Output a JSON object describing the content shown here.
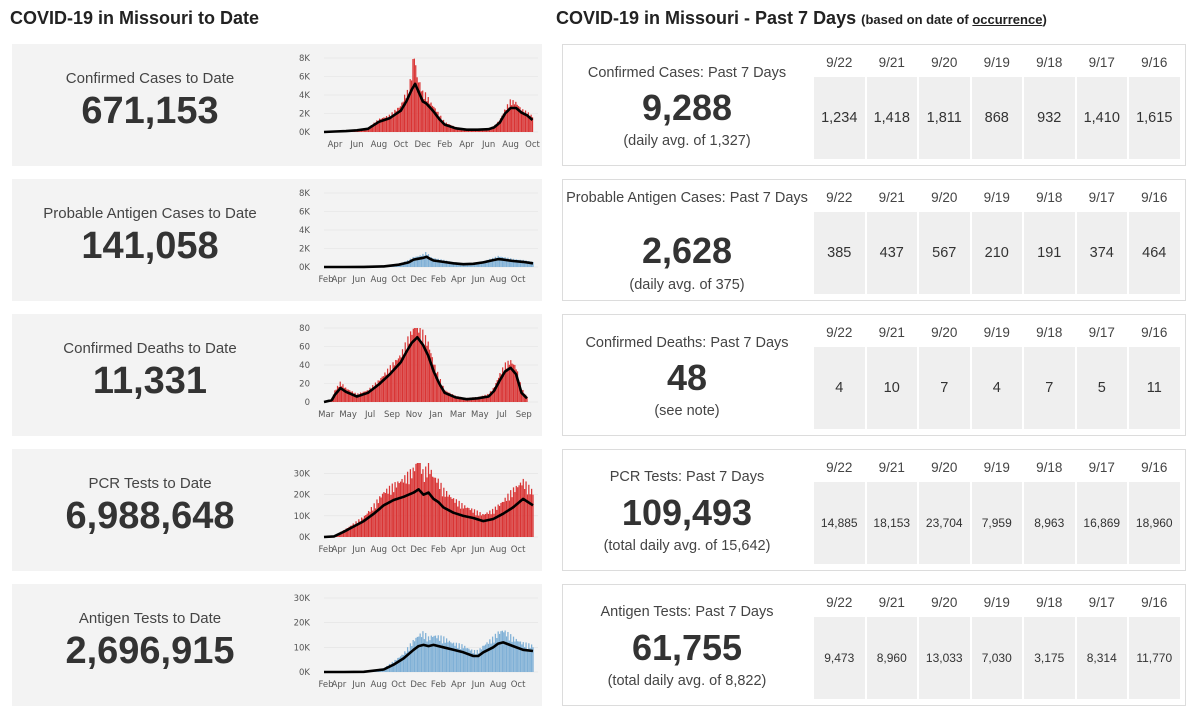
{
  "headers": {
    "left_title": "COVID-19 in Missouri to Date",
    "right_title": "COVID-19 in Missouri - Past 7 Days",
    "right_note_prefix": "(based on date of ",
    "right_note_link": "occurrence",
    "right_note_suffix": ")"
  },
  "to_date": [
    {
      "label": "Confirmed Cases to Date",
      "value": "671,153"
    },
    {
      "label": "Probable Antigen Cases to Date",
      "value": "141,058"
    },
    {
      "label": "Confirmed Deaths to Date",
      "value": "11,331"
    },
    {
      "label": "PCR Tests to Date",
      "value": "6,988,648"
    },
    {
      "label": "Antigen Tests to Date",
      "value": "2,696,915"
    }
  ],
  "past_7_days": [
    {
      "label": "Confirmed Cases: Past 7 Days",
      "value": "9,288",
      "sub": "(daily avg. of 1,327)",
      "dates": [
        "9/22",
        "9/21",
        "9/20",
        "9/19",
        "9/18",
        "9/17",
        "9/16"
      ],
      "values": [
        "1,234",
        "1,418",
        "1,811",
        "868",
        "932",
        "1,410",
        "1,615"
      ]
    },
    {
      "label": "Probable Antigen Cases: Past 7 Days",
      "value": "2,628",
      "sub": "(daily avg. of 375)",
      "dates": [
        "9/22",
        "9/21",
        "9/20",
        "9/19",
        "9/18",
        "9/17",
        "9/16"
      ],
      "values": [
        "385",
        "437",
        "567",
        "210",
        "191",
        "374",
        "464"
      ]
    },
    {
      "label": "Confirmed Deaths: Past 7 Days",
      "value": "48",
      "sub": "(see note)",
      "dates": [
        "9/22",
        "9/21",
        "9/20",
        "9/19",
        "9/18",
        "9/17",
        "9/16"
      ],
      "values": [
        "4",
        "10",
        "7",
        "4",
        "7",
        "5",
        "11"
      ]
    },
    {
      "label": "PCR Tests: Past 7 Days",
      "value": "109,493",
      "sub": "(total daily avg. of 15,642)",
      "dates": [
        "9/22",
        "9/21",
        "9/20",
        "9/19",
        "9/18",
        "9/17",
        "9/16"
      ],
      "values": [
        "14,885",
        "18,153",
        "23,704",
        "7,959",
        "8,963",
        "16,869",
        "18,960"
      ]
    },
    {
      "label": "Antigen Tests: Past 7 Days",
      "value": "61,755",
      "sub": "(total daily avg. of 8,822)",
      "dates": [
        "9/22",
        "9/21",
        "9/20",
        "9/19",
        "9/18",
        "9/17",
        "9/16"
      ],
      "values": [
        "9,473",
        "8,960",
        "13,033",
        "7,030",
        "3,175",
        "8,314",
        "11,770"
      ]
    }
  ],
  "chart_data": [
    {
      "type": "area",
      "title": "",
      "bar_color": "#d93434",
      "line_color": "#000000",
      "ylim": [
        0,
        8000
      ],
      "yticks": [
        0,
        2000,
        4000,
        6000,
        8000
      ],
      "ytick_labels": [
        "0K",
        "2K",
        "4K",
        "6K",
        "8K"
      ],
      "xtick_labels": [
        "Apr",
        "Jun",
        "Aug",
        "Oct",
        "Dec",
        "Feb",
        "Apr",
        "Jun",
        "Aug",
        "Oct"
      ],
      "x_range": [
        0,
        19.5
      ],
      "xtick_positions": [
        1,
        3,
        5,
        7,
        9,
        11,
        13,
        15,
        17,
        19
      ],
      "series_daily": [
        [
          0,
          0
        ],
        [
          1,
          100
        ],
        [
          2,
          150
        ],
        [
          3,
          200
        ],
        [
          4,
          400
        ],
        [
          5,
          1300
        ],
        [
          6,
          1700
        ],
        [
          7,
          2700
        ],
        [
          7.4,
          3800
        ],
        [
          7.7,
          4200
        ],
        [
          8,
          6000
        ],
        [
          8.2,
          8200
        ],
        [
          8.5,
          5500
        ],
        [
          8.8,
          4800
        ],
        [
          9,
          4000
        ],
        [
          9.3,
          3800
        ],
        [
          9.7,
          3000
        ],
        [
          10,
          2600
        ],
        [
          10.5,
          1800
        ],
        [
          11,
          1000
        ],
        [
          12,
          500
        ],
        [
          13,
          300
        ],
        [
          14,
          280
        ],
        [
          15,
          350
        ],
        [
          15.5,
          600
        ],
        [
          16,
          1200
        ],
        [
          16.5,
          2300
        ],
        [
          17,
          3200
        ],
        [
          17.5,
          3000
        ],
        [
          18,
          2300
        ],
        [
          18.5,
          2000
        ],
        [
          19,
          1600
        ]
      ],
      "series_avg": [
        [
          0,
          0
        ],
        [
          1,
          50
        ],
        [
          2,
          100
        ],
        [
          3,
          180
        ],
        [
          4,
          350
        ],
        [
          5,
          1100
        ],
        [
          6,
          1500
        ],
        [
          7,
          2300
        ],
        [
          7.5,
          3300
        ],
        [
          8,
          4600
        ],
        [
          8.3,
          5200
        ],
        [
          8.6,
          4400
        ],
        [
          9,
          3300
        ],
        [
          9.3,
          3100
        ],
        [
          9.7,
          2600
        ],
        [
          10,
          2200
        ],
        [
          10.5,
          1400
        ],
        [
          11,
          800
        ],
        [
          12,
          400
        ],
        [
          13,
          250
        ],
        [
          14,
          250
        ],
        [
          15,
          300
        ],
        [
          15.5,
          500
        ],
        [
          16,
          1000
        ],
        [
          16.5,
          2000
        ],
        [
          17,
          2600
        ],
        [
          17.5,
          2600
        ],
        [
          18,
          2100
        ],
        [
          18.5,
          1800
        ],
        [
          19,
          1300
        ]
      ]
    },
    {
      "type": "area",
      "title": "",
      "bar_color": "#7fb0d6",
      "line_color": "#000000",
      "ylim": [
        0,
        8000
      ],
      "yticks": [
        0,
        2000,
        4000,
        6000,
        8000
      ],
      "ytick_labels": [
        "0K",
        "2K",
        "4K",
        "6K",
        "8K"
      ],
      "xtick_labels": [
        "Feb",
        "Apr",
        "Jun",
        "Aug",
        "Oct",
        "Dec",
        "Feb",
        "Apr",
        "Jun",
        "Aug",
        "Oct"
      ],
      "x_range": [
        0,
        21.5
      ],
      "xtick_positions": [
        0.2,
        1.5,
        3.5,
        5.5,
        7.5,
        9.5,
        11.5,
        13.5,
        15.5,
        17.5,
        19.5
      ],
      "series_daily": [
        [
          0,
          0
        ],
        [
          2,
          0
        ],
        [
          4,
          20
        ],
        [
          6,
          80
        ],
        [
          7.5,
          300
        ],
        [
          8.5,
          700
        ],
        [
          9,
          1000
        ],
        [
          9.5,
          1100
        ],
        [
          10,
          1300
        ],
        [
          10.3,
          1500
        ],
        [
          10.7,
          1000
        ],
        [
          11,
          900
        ],
        [
          12,
          700
        ],
        [
          13,
          500
        ],
        [
          14,
          350
        ],
        [
          15,
          400
        ],
        [
          16,
          600
        ],
        [
          17,
          900
        ],
        [
          17.5,
          1100
        ],
        [
          18,
          1000
        ],
        [
          19,
          800
        ],
        [
          20,
          700
        ],
        [
          21,
          500
        ]
      ],
      "series_avg": [
        [
          0,
          0
        ],
        [
          2,
          0
        ],
        [
          4,
          10
        ],
        [
          6,
          60
        ],
        [
          7.5,
          250
        ],
        [
          8.5,
          500
        ],
        [
          9,
          800
        ],
        [
          9.5,
          900
        ],
        [
          10,
          1000
        ],
        [
          10.3,
          1100
        ],
        [
          10.7,
          850
        ],
        [
          11,
          700
        ],
        [
          12,
          550
        ],
        [
          13,
          400
        ],
        [
          14,
          300
        ],
        [
          15,
          350
        ],
        [
          16,
          500
        ],
        [
          17,
          750
        ],
        [
          17.5,
          850
        ],
        [
          18,
          800
        ],
        [
          19,
          650
        ],
        [
          20,
          550
        ],
        [
          21,
          400
        ]
      ]
    },
    {
      "type": "area",
      "title": "",
      "bar_color": "#d93434",
      "line_color": "#000000",
      "ylim": [
        0,
        80
      ],
      "yticks": [
        0,
        20,
        40,
        60,
        80
      ],
      "ytick_labels": [
        "0",
        "20",
        "40",
        "60",
        "80"
      ],
      "xtick_labels": [
        "Mar",
        "May",
        "Jul",
        "Sep",
        "Nov",
        "Jan",
        "Mar",
        "May",
        "Jul",
        "Sep"
      ],
      "x_range": [
        0,
        19.5
      ],
      "xtick_positions": [
        0.2,
        2.2,
        4.2,
        6.2,
        8.2,
        10.2,
        12.2,
        14.2,
        16.2,
        18.2
      ],
      "series_daily": [
        [
          0,
          0
        ],
        [
          0.7,
          3
        ],
        [
          1,
          12
        ],
        [
          1.5,
          20
        ],
        [
          2,
          14
        ],
        [
          3,
          8
        ],
        [
          4,
          12
        ],
        [
          5,
          22
        ],
        [
          6,
          35
        ],
        [
          7,
          48
        ],
        [
          7.5,
          60
        ],
        [
          8,
          72
        ],
        [
          8.5,
          80
        ],
        [
          9,
          70
        ],
        [
          9.5,
          60
        ],
        [
          10,
          40
        ],
        [
          10.5,
          25
        ],
        [
          11,
          12
        ],
        [
          12,
          6
        ],
        [
          13,
          4
        ],
        [
          14,
          5
        ],
        [
          15,
          8
        ],
        [
          15.5,
          15
        ],
        [
          16,
          28
        ],
        [
          16.5,
          38
        ],
        [
          17,
          42
        ],
        [
          17.5,
          36
        ],
        [
          18,
          14
        ],
        [
          18.5,
          5
        ]
      ],
      "series_avg": [
        [
          0,
          0
        ],
        [
          0.7,
          2
        ],
        [
          1,
          8
        ],
        [
          1.5,
          15
        ],
        [
          2,
          11
        ],
        [
          3,
          6
        ],
        [
          4,
          10
        ],
        [
          5,
          19
        ],
        [
          6,
          30
        ],
        [
          7,
          43
        ],
        [
          7.5,
          54
        ],
        [
          8,
          64
        ],
        [
          8.5,
          70
        ],
        [
          9,
          62
        ],
        [
          9.5,
          50
        ],
        [
          10,
          33
        ],
        [
          10.5,
          20
        ],
        [
          11,
          10
        ],
        [
          12,
          5
        ],
        [
          13,
          3
        ],
        [
          14,
          4
        ],
        [
          15,
          6
        ],
        [
          15.5,
          12
        ],
        [
          16,
          23
        ],
        [
          16.5,
          33
        ],
        [
          17,
          37
        ],
        [
          17.5,
          30
        ],
        [
          18,
          10
        ],
        [
          18.5,
          4
        ]
      ]
    },
    {
      "type": "area",
      "title": "",
      "bar_color": "#d93434",
      "line_color": "#000000",
      "ylim": [
        0,
        35000
      ],
      "yticks": [
        0,
        10000,
        20000,
        30000
      ],
      "ytick_labels": [
        "0K",
        "10K",
        "20K",
        "30K"
      ],
      "xtick_labels": [
        "Feb",
        "Apr",
        "Jun",
        "Aug",
        "Oct",
        "Dec",
        "Feb",
        "Apr",
        "Jun",
        "Aug",
        "Oct"
      ],
      "x_range": [
        0,
        21.5
      ],
      "xtick_positions": [
        0.2,
        1.5,
        3.5,
        5.5,
        7.5,
        9.5,
        11.5,
        13.5,
        15.5,
        17.5,
        19.5
      ],
      "series_daily": [
        [
          0,
          0
        ],
        [
          1,
          500
        ],
        [
          2,
          3000
        ],
        [
          3,
          6000
        ],
        [
          4,
          9000
        ],
        [
          5,
          14000
        ],
        [
          6,
          20000
        ],
        [
          7,
          23000
        ],
        [
          8,
          26000
        ],
        [
          9,
          30000
        ],
        [
          9.5,
          35000
        ],
        [
          10,
          28000
        ],
        [
          10.5,
          32000
        ],
        [
          11,
          27000
        ],
        [
          11.5,
          25000
        ],
        [
          12,
          21000
        ],
        [
          13,
          17000
        ],
        [
          14,
          14000
        ],
        [
          15,
          12000
        ],
        [
          16,
          10000
        ],
        [
          17,
          12000
        ],
        [
          18,
          16000
        ],
        [
          19,
          21000
        ],
        [
          20,
          25000
        ],
        [
          21,
          20000
        ]
      ],
      "series_avg": [
        [
          0,
          0
        ],
        [
          1,
          300
        ],
        [
          2,
          2500
        ],
        [
          3,
          5000
        ],
        [
          4,
          7500
        ],
        [
          5,
          11000
        ],
        [
          6,
          15000
        ],
        [
          7,
          17500
        ],
        [
          8,
          19000
        ],
        [
          9,
          21000
        ],
        [
          9.5,
          22500
        ],
        [
          10,
          20000
        ],
        [
          10.5,
          21000
        ],
        [
          11,
          18000
        ],
        [
          11.5,
          16500
        ],
        [
          12,
          14000
        ],
        [
          13,
          11500
        ],
        [
          14,
          10000
        ],
        [
          15,
          9000
        ],
        [
          16,
          7500
        ],
        [
          17,
          8500
        ],
        [
          18,
          11000
        ],
        [
          19,
          14000
        ],
        [
          20,
          18000
        ],
        [
          21,
          15000
        ]
      ]
    },
    {
      "type": "area",
      "title": "",
      "bar_color": "#7fb0d6",
      "line_color": "#000000",
      "ylim": [
        0,
        30000
      ],
      "yticks": [
        0,
        10000,
        20000,
        30000
      ],
      "ytick_labels": [
        "0K",
        "10K",
        "20K",
        "30K"
      ],
      "xtick_labels": [
        "Feb",
        "Apr",
        "Jun",
        "Aug",
        "Oct",
        "Dec",
        "Feb",
        "Apr",
        "Jun",
        "Aug",
        "Oct"
      ],
      "x_range": [
        0,
        21.5
      ],
      "xtick_positions": [
        0.2,
        1.5,
        3.5,
        5.5,
        7.5,
        9.5,
        11.5,
        13.5,
        15.5,
        17.5,
        19.5
      ],
      "series_daily": [
        [
          0,
          0
        ],
        [
          2,
          0
        ],
        [
          4,
          200
        ],
        [
          6,
          1500
        ],
        [
          7,
          4000
        ],
        [
          8,
          7000
        ],
        [
          9,
          12000
        ],
        [
          9.5,
          14000
        ],
        [
          10,
          15000
        ],
        [
          10.5,
          13000
        ],
        [
          11,
          14000
        ],
        [
          12,
          13000
        ],
        [
          13,
          11000
        ],
        [
          14,
          10000
        ],
        [
          15,
          8000
        ],
        [
          15.5,
          8000
        ],
        [
          16,
          10000
        ],
        [
          17,
          13000
        ],
        [
          17.5,
          15000
        ],
        [
          18,
          16000
        ],
        [
          19,
          13000
        ],
        [
          20,
          11000
        ],
        [
          21,
          10000
        ]
      ],
      "series_avg": [
        [
          0,
          0
        ],
        [
          2,
          0
        ],
        [
          4,
          100
        ],
        [
          6,
          1000
        ],
        [
          7,
          3000
        ],
        [
          8,
          5500
        ],
        [
          9,
          9000
        ],
        [
          9.5,
          10500
        ],
        [
          10,
          11000
        ],
        [
          10.5,
          10500
        ],
        [
          11,
          11000
        ],
        [
          12,
          10000
        ],
        [
          13,
          9000
        ],
        [
          14,
          8000
        ],
        [
          15,
          6500
        ],
        [
          15.5,
          6500
        ],
        [
          16,
          8000
        ],
        [
          17,
          10000
        ],
        [
          17.5,
          11500
        ],
        [
          18,
          12000
        ],
        [
          19,
          10500
        ],
        [
          20,
          9000
        ],
        [
          21,
          8500
        ]
      ]
    }
  ]
}
